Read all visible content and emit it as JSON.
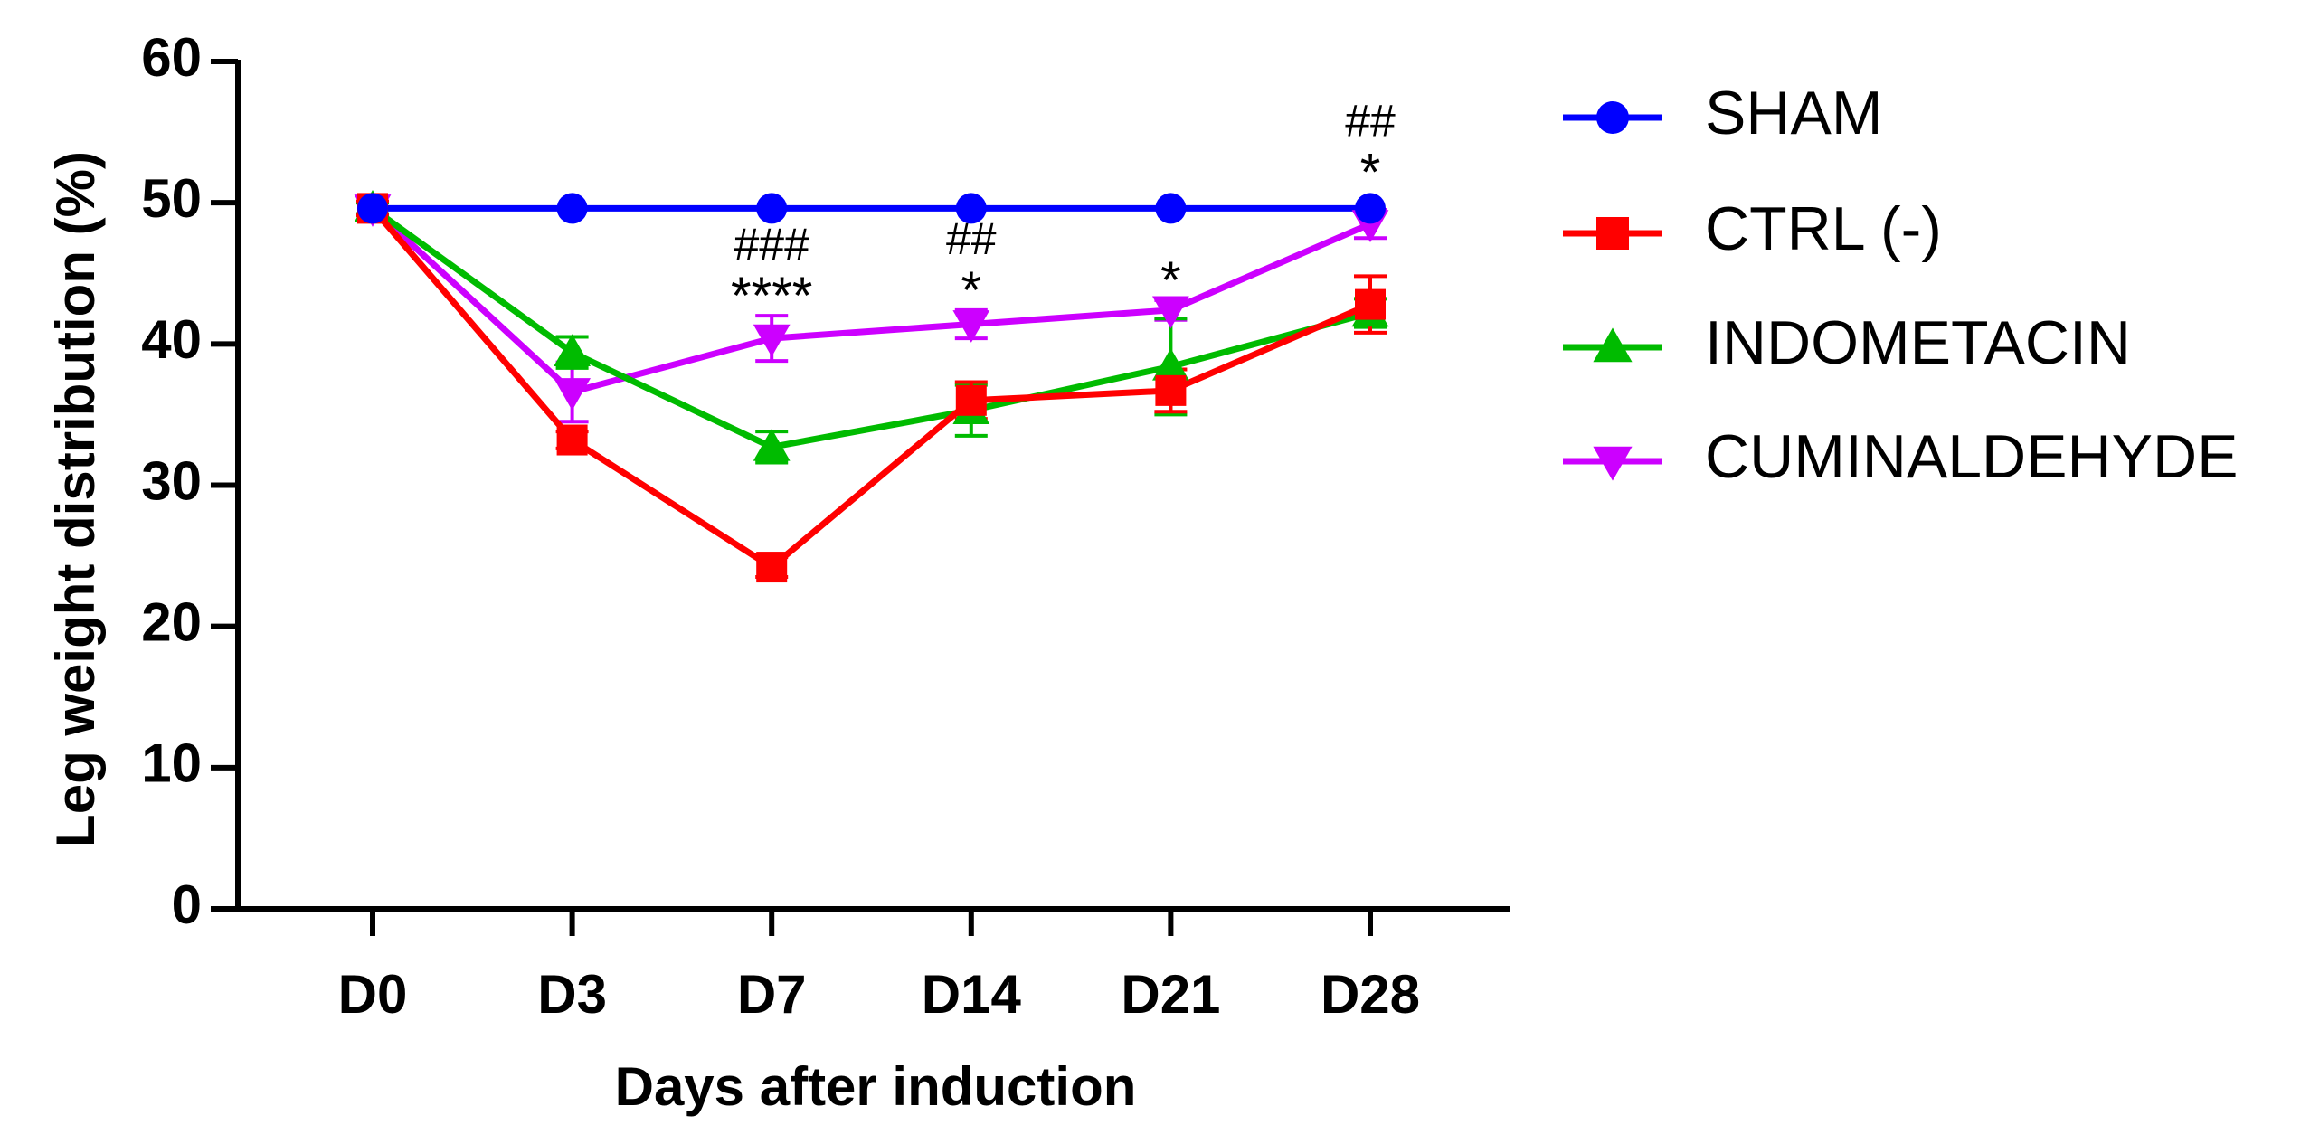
{
  "chart_data": {
    "type": "line",
    "title": "",
    "xlabel": "Days after induction",
    "ylabel": "Leg weight distribution (%)",
    "categories": [
      "D0",
      "D3",
      "D7",
      "D14",
      "D21",
      "D28"
    ],
    "ylim": [
      0,
      60
    ],
    "yticks": [
      0,
      10,
      20,
      30,
      40,
      50,
      60
    ],
    "grid": false,
    "legend_position": "right",
    "series": [
      {
        "name": "SHAM",
        "color": "#0000ff",
        "marker": "circle",
        "values": [
          49.6,
          49.6,
          49.6,
          49.6,
          49.6,
          49.6
        ],
        "errors": [
          0,
          0,
          0,
          0,
          0,
          0
        ]
      },
      {
        "name": "CTRL (-)",
        "color": "#ff0000",
        "marker": "square",
        "values": [
          49.6,
          33.2,
          24.2,
          36.0,
          36.7,
          42.8
        ],
        "errors": [
          0.5,
          0.6,
          0.7,
          1.3,
          1.5,
          2.0
        ]
      },
      {
        "name": "INDOMETACIN",
        "color": "#00bb00",
        "marker": "triangle-up",
        "values": [
          49.6,
          39.4,
          32.7,
          35.3,
          38.4,
          42.2
        ],
        "errors": [
          0.4,
          1.1,
          1.1,
          1.8,
          3.4,
          1.0
        ]
      },
      {
        "name": "CUMINALDEHYDE",
        "color": "#cc00ff",
        "marker": "triangle-down",
        "values": [
          49.6,
          36.6,
          40.4,
          41.4,
          42.4,
          48.5
        ],
        "errors": [
          0.4,
          2.1,
          1.6,
          1.0,
          0.7,
          1.0
        ]
      }
    ],
    "annotations": [
      {
        "category": "D7",
        "lines": [
          "###",
          "****"
        ]
      },
      {
        "category": "D14",
        "lines": [
          "##",
          "*"
        ]
      },
      {
        "category": "D21",
        "lines": [
          "*"
        ]
      },
      {
        "category": "D28",
        "lines": [
          "##",
          "*"
        ]
      }
    ]
  }
}
